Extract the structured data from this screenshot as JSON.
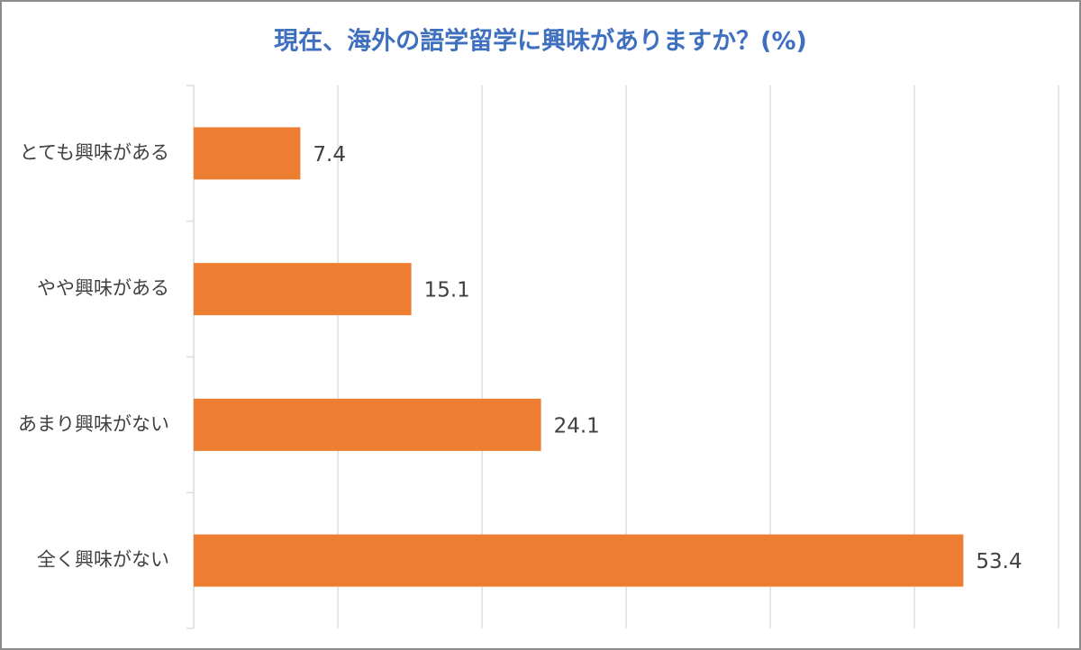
{
  "chart_data": {
    "type": "bar",
    "orientation": "horizontal",
    "title": "現在、海外の語学留学に興味がありますか？(%)",
    "categories": [
      "とても興味がある",
      "やや興味がある",
      "あまり興味がない",
      "全く興味がない"
    ],
    "values": [
      7.4,
      15.1,
      24.1,
      53.4
    ],
    "color": "#ed7d31",
    "xlim": [
      0,
      60
    ],
    "xticks": [
      0,
      10,
      20,
      30,
      40,
      50,
      60
    ],
    "xtick_labels": false,
    "grid": true
  }
}
